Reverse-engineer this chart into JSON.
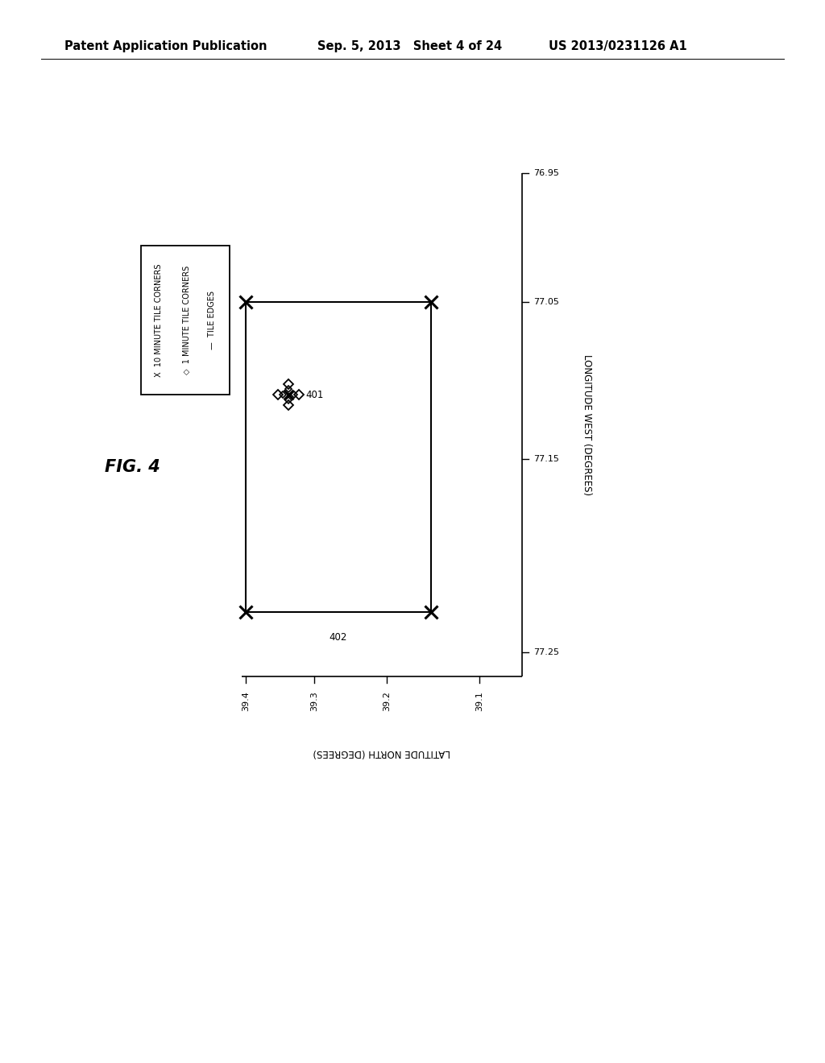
{
  "header_left": "Patent Application Publication",
  "header_mid": "Sep. 5, 2013   Sheet 4 of 24",
  "header_right": "US 2013/0231126 A1",
  "fig_label": "FIG. 4",
  "xlabel": "LATITUDE NORTH (DEGREES)",
  "ylabel": "LONGITUDE WEST (DEGREES)",
  "background_color": "#ffffff",
  "line_color": "#000000",
  "header_fontsize": 10.5,
  "body_fontsize": 9,
  "legend_fontsize": 8.5,
  "fig_label_fontsize": 16,
  "note_402": "402",
  "note_401": "401"
}
